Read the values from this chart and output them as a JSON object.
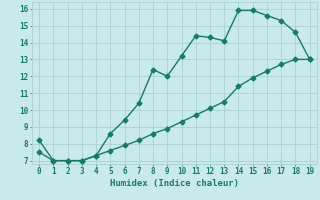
{
  "xlabel": "Humidex (Indice chaleur)",
  "background_color": "#c8eaea",
  "grid_color": "#afd4d4",
  "line_color": "#1a7a6a",
  "xlim": [
    -0.5,
    19.5
  ],
  "ylim": [
    6.8,
    16.4
  ],
  "xticks": [
    0,
    1,
    2,
    3,
    4,
    5,
    6,
    7,
    8,
    9,
    10,
    11,
    12,
    13,
    14,
    15,
    16,
    17,
    18,
    19
  ],
  "yticks": [
    7,
    8,
    9,
    10,
    11,
    12,
    13,
    14,
    15,
    16
  ],
  "curve1_x": [
    0,
    1,
    2,
    3,
    4,
    5,
    6,
    7,
    8,
    9,
    10,
    11,
    12,
    13,
    14,
    15,
    16,
    17,
    18,
    19
  ],
  "curve1_y": [
    8.2,
    7.0,
    7.0,
    7.0,
    7.3,
    8.6,
    9.4,
    10.4,
    12.4,
    12.0,
    13.2,
    14.4,
    14.3,
    14.1,
    15.9,
    15.9,
    15.6,
    15.3,
    14.6,
    13.0
  ],
  "curve2_x": [
    0,
    1,
    2,
    3,
    4,
    5,
    6,
    7,
    8,
    9,
    10,
    11,
    12,
    13,
    14,
    15,
    16,
    17,
    18,
    19
  ],
  "curve2_y": [
    7.5,
    7.0,
    7.0,
    7.0,
    7.3,
    7.6,
    7.9,
    8.2,
    8.6,
    8.9,
    9.3,
    9.7,
    10.1,
    10.5,
    11.4,
    11.9,
    12.3,
    12.7,
    13.0,
    13.0
  ]
}
